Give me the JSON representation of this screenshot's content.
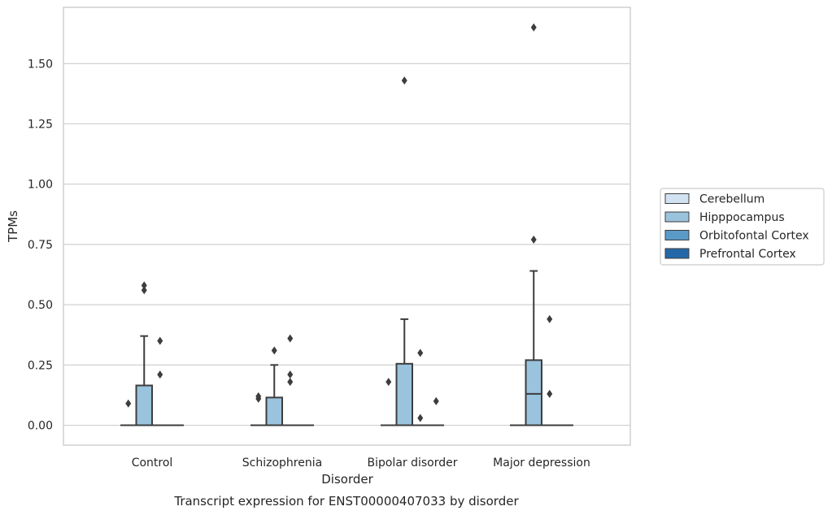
{
  "chart_data": {
    "type": "box",
    "title": "",
    "caption": "Transcript expression for ENST00000407033 by disorder",
    "xlabel": "Disorder",
    "ylabel": "TPMs",
    "ylim": [
      -0.08,
      1.78
    ],
    "yticks": [
      0.0,
      0.25,
      0.5,
      0.75,
      1.0,
      1.25,
      1.5
    ],
    "ytick_labels": [
      "0.00",
      "0.25",
      "0.50",
      "0.75",
      "1.00",
      "1.25",
      "1.50"
    ],
    "grid": "horizontal",
    "legend_position": "right",
    "categories": [
      "Control",
      "Schizophrenia",
      "Bipolar disorder",
      "Major depression"
    ],
    "series": [
      {
        "name": "Cerebellum",
        "color": "#d1e2f2",
        "boxes": [
          {
            "q1": 0,
            "median": 0,
            "q3": 0,
            "whisker_low": 0,
            "whisker_high": 0,
            "outliers": [
              0.09
            ]
          },
          {
            "q1": 0,
            "median": 0,
            "q3": 0,
            "whisker_low": 0,
            "whisker_high": 0,
            "outliers": [
              0.11,
              0.12
            ]
          },
          {
            "q1": 0,
            "median": 0,
            "q3": 0,
            "whisker_low": 0,
            "whisker_high": 0,
            "outliers": [
              0.18
            ]
          },
          {
            "q1": 0,
            "median": 0,
            "q3": 0,
            "whisker_low": 0,
            "whisker_high": 0,
            "outliers": []
          }
        ]
      },
      {
        "name": "Hipppocampus",
        "color": "#9ac3dd",
        "boxes": [
          {
            "q1": 0,
            "median": 0,
            "q3": 0.165,
            "whisker_low": 0,
            "whisker_high": 0.37,
            "outliers": [
              0.56,
              0.58
            ]
          },
          {
            "q1": 0,
            "median": 0,
            "q3": 0.115,
            "whisker_low": 0,
            "whisker_high": 0.25,
            "outliers": [
              0.31
            ]
          },
          {
            "q1": 0,
            "median": 0,
            "q3": 0.255,
            "whisker_low": 0,
            "whisker_high": 0.44,
            "outliers": [
              1.43
            ]
          },
          {
            "q1": 0,
            "median": 0.13,
            "q3": 0.27,
            "whisker_low": 0,
            "whisker_high": 0.64,
            "outliers": [
              0.77,
              1.65
            ]
          }
        ]
      },
      {
        "name": "Orbitofontal Cortex",
        "color": "#5a9ac8",
        "boxes": [
          {
            "q1": 0,
            "median": 0,
            "q3": 0,
            "whisker_low": 0,
            "whisker_high": 0,
            "outliers": [
              0.21,
              0.35
            ]
          },
          {
            "q1": 0,
            "median": 0,
            "q3": 0,
            "whisker_low": 0,
            "whisker_high": 0,
            "outliers": [
              0.18,
              0.21,
              0.36
            ]
          },
          {
            "q1": 0,
            "median": 0,
            "q3": 0,
            "whisker_low": 0,
            "whisker_high": 0,
            "outliers": [
              0.03,
              0.3
            ]
          },
          {
            "q1": 0,
            "median": 0,
            "q3": 0,
            "whisker_low": 0,
            "whisker_high": 0,
            "outliers": [
              0.13,
              0.44
            ]
          }
        ]
      },
      {
        "name": "Prefrontal Cortex",
        "color": "#2468a8",
        "boxes": [
          {
            "q1": 0,
            "median": 0,
            "q3": 0,
            "whisker_low": 0,
            "whisker_high": 0,
            "outliers": []
          },
          {
            "q1": 0,
            "median": 0,
            "q3": 0,
            "whisker_low": 0,
            "whisker_high": 0,
            "outliers": []
          },
          {
            "q1": 0,
            "median": 0,
            "q3": 0,
            "whisker_low": 0,
            "whisker_high": 0,
            "outliers": [
              0.1
            ]
          },
          {
            "q1": 0,
            "median": 0,
            "q3": 0,
            "whisker_low": 0,
            "whisker_high": 0,
            "outliers": []
          }
        ]
      }
    ]
  }
}
